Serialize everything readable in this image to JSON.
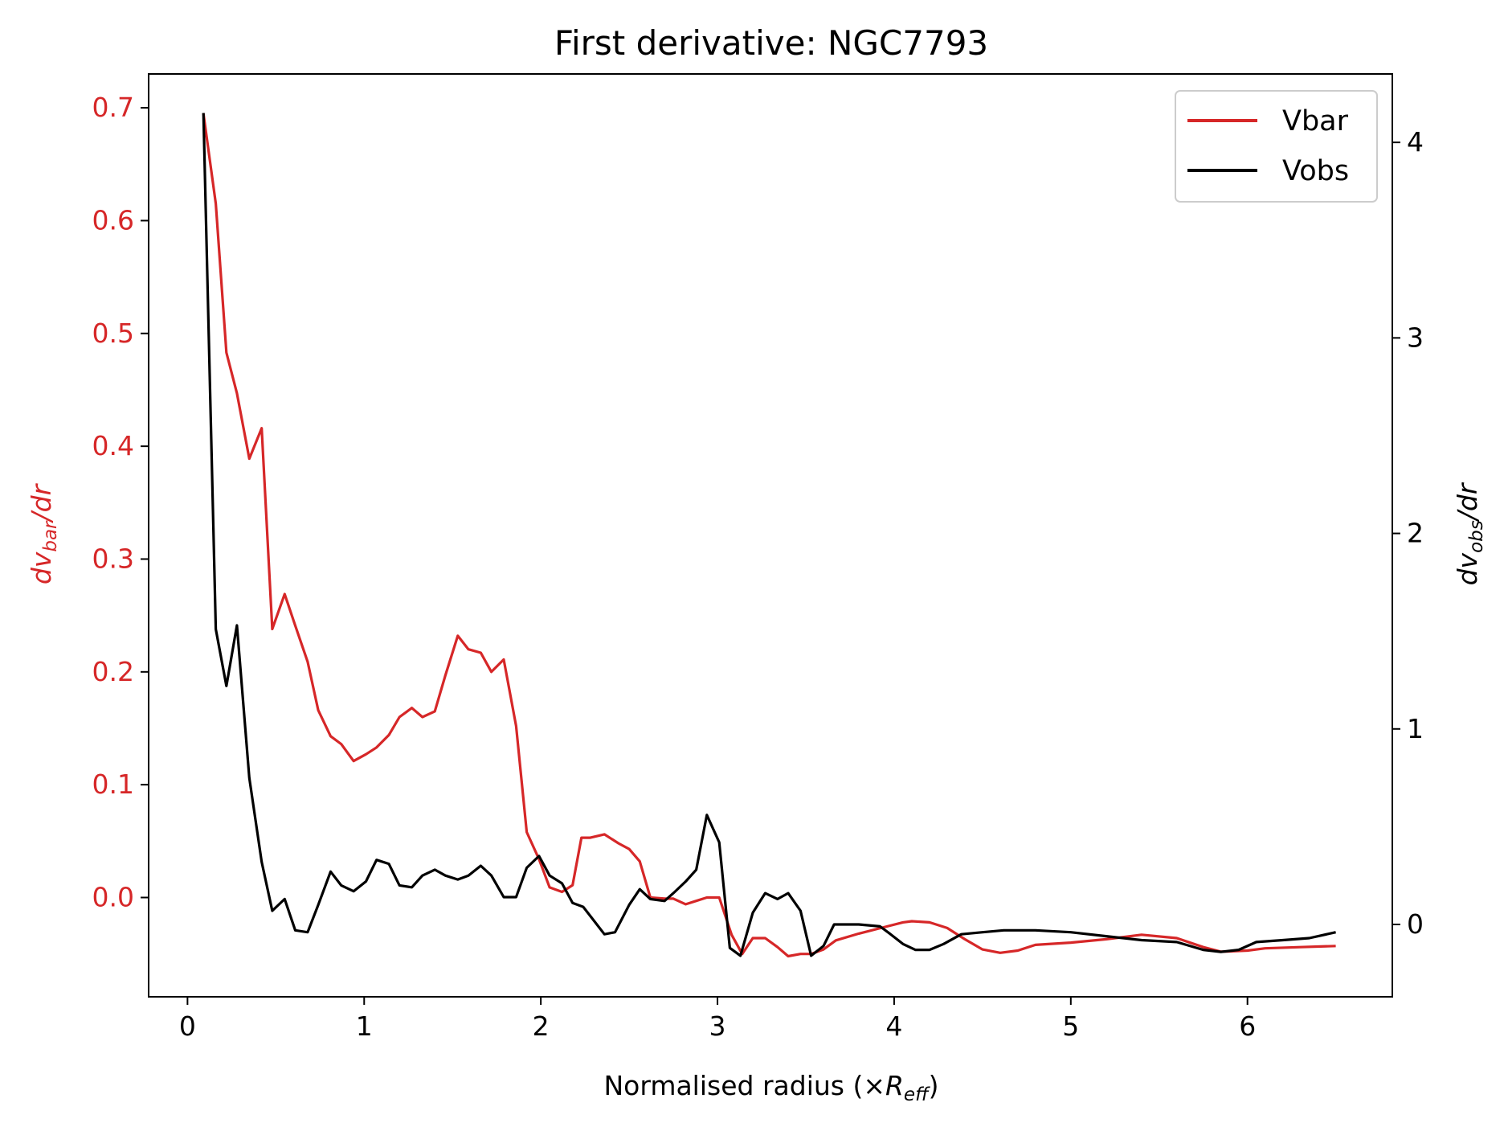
{
  "chart_data": {
    "type": "line",
    "title": "First derivative: NGC7793",
    "xlabel": {
      "main": "Normalised radius (×",
      "italic": "R",
      "sub": "eff",
      "close": ")"
    },
    "ylabel_left": {
      "italic": "dv",
      "sub": "bar",
      "tail": "/dr",
      "color": "#d62728"
    },
    "ylabel_right": {
      "italic": "dv",
      "sub": "obs",
      "tail": "/dr",
      "color": "#000000"
    },
    "xlim": [
      -0.22,
      6.82
    ],
    "ylim_left": [
      -0.088,
      0.73
    ],
    "ylim_right": [
      -0.37,
      4.35
    ],
    "x_ticks": [
      0,
      1,
      2,
      3,
      4,
      5,
      6
    ],
    "x_tick_labels": [
      "0",
      "1",
      "2",
      "3",
      "4",
      "5",
      "6"
    ],
    "y_left_ticks": [
      0.0,
      0.1,
      0.2,
      0.3,
      0.4,
      0.5,
      0.6,
      0.7
    ],
    "y_left_tick_labels": [
      "0.0",
      "0.1",
      "0.2",
      "0.3",
      "0.4",
      "0.5",
      "0.6",
      "0.7"
    ],
    "y_right_ticks": [
      0,
      1,
      2,
      3,
      4
    ],
    "y_right_tick_labels": [
      "0",
      "1",
      "2",
      "3",
      "4"
    ],
    "legend_position": "top-right",
    "series": [
      {
        "name": "Vbar",
        "axis": "left",
        "color": "#d62728",
        "points": [
          [
            0.09,
            0.695
          ],
          [
            0.16,
            0.615
          ],
          [
            0.22,
            0.483
          ],
          [
            0.28,
            0.447
          ],
          [
            0.35,
            0.389
          ],
          [
            0.42,
            0.416
          ],
          [
            0.48,
            0.238
          ],
          [
            0.55,
            0.269
          ],
          [
            0.61,
            0.241
          ],
          [
            0.68,
            0.209
          ],
          [
            0.74,
            0.166
          ],
          [
            0.81,
            0.143
          ],
          [
            0.87,
            0.136
          ],
          [
            0.94,
            0.121
          ],
          [
            1.01,
            0.127
          ],
          [
            1.07,
            0.133
          ],
          [
            1.14,
            0.144
          ],
          [
            1.2,
            0.16
          ],
          [
            1.27,
            0.168
          ],
          [
            1.33,
            0.16
          ],
          [
            1.4,
            0.165
          ],
          [
            1.46,
            0.197
          ],
          [
            1.53,
            0.232
          ],
          [
            1.59,
            0.22
          ],
          [
            1.66,
            0.217
          ],
          [
            1.72,
            0.2
          ],
          [
            1.79,
            0.211
          ],
          [
            1.86,
            0.152
          ],
          [
            1.92,
            0.058
          ],
          [
            1.99,
            0.034
          ],
          [
            2.05,
            0.009
          ],
          [
            2.12,
            0.005
          ],
          [
            2.18,
            0.011
          ],
          [
            2.23,
            0.053
          ],
          [
            2.28,
            0.053
          ],
          [
            2.36,
            0.056
          ],
          [
            2.44,
            0.048
          ],
          [
            2.5,
            0.043
          ],
          [
            2.56,
            0.032
          ],
          [
            2.62,
            0.0
          ],
          [
            2.7,
            -0.001
          ],
          [
            2.75,
            -0.001
          ],
          [
            2.82,
            -0.006
          ],
          [
            2.88,
            -0.003
          ],
          [
            2.94,
            0.0
          ],
          [
            3.01,
            0.0
          ],
          [
            3.08,
            -0.033
          ],
          [
            3.14,
            -0.05
          ],
          [
            3.2,
            -0.036
          ],
          [
            3.27,
            -0.036
          ],
          [
            3.34,
            -0.044
          ],
          [
            3.4,
            -0.052
          ],
          [
            3.47,
            -0.05
          ],
          [
            3.53,
            -0.05
          ],
          [
            3.6,
            -0.046
          ],
          [
            3.67,
            -0.038
          ],
          [
            3.8,
            -0.032
          ],
          [
            3.95,
            -0.026
          ],
          [
            4.05,
            -0.022
          ],
          [
            4.1,
            -0.021
          ],
          [
            4.2,
            -0.022
          ],
          [
            4.3,
            -0.027
          ],
          [
            4.4,
            -0.037
          ],
          [
            4.5,
            -0.046
          ],
          [
            4.6,
            -0.049
          ],
          [
            4.7,
            -0.047
          ],
          [
            4.8,
            -0.042
          ],
          [
            5.0,
            -0.04
          ],
          [
            5.2,
            -0.037
          ],
          [
            5.4,
            -0.033
          ],
          [
            5.6,
            -0.036
          ],
          [
            5.75,
            -0.044
          ],
          [
            5.85,
            -0.048
          ],
          [
            6.0,
            -0.047
          ],
          [
            6.1,
            -0.045
          ],
          [
            6.3,
            -0.044
          ],
          [
            6.5,
            -0.043
          ]
        ]
      },
      {
        "name": "Vobs",
        "axis": "right",
        "color": "#000000",
        "points": [
          [
            0.09,
            4.15
          ],
          [
            0.16,
            1.51
          ],
          [
            0.22,
            1.22
          ],
          [
            0.28,
            1.53
          ],
          [
            0.35,
            0.75
          ],
          [
            0.42,
            0.32
          ],
          [
            0.48,
            0.07
          ],
          [
            0.55,
            0.13
          ],
          [
            0.61,
            -0.03
          ],
          [
            0.68,
            -0.04
          ],
          [
            0.74,
            0.1
          ],
          [
            0.81,
            0.27
          ],
          [
            0.87,
            0.2
          ],
          [
            0.94,
            0.17
          ],
          [
            1.01,
            0.22
          ],
          [
            1.07,
            0.33
          ],
          [
            1.14,
            0.31
          ],
          [
            1.2,
            0.2
          ],
          [
            1.27,
            0.19
          ],
          [
            1.33,
            0.25
          ],
          [
            1.4,
            0.28
          ],
          [
            1.46,
            0.25
          ],
          [
            1.53,
            0.23
          ],
          [
            1.59,
            0.25
          ],
          [
            1.66,
            0.3
          ],
          [
            1.72,
            0.25
          ],
          [
            1.79,
            0.14
          ],
          [
            1.86,
            0.14
          ],
          [
            1.92,
            0.29
          ],
          [
            1.99,
            0.35
          ],
          [
            2.05,
            0.25
          ],
          [
            2.12,
            0.21
          ],
          [
            2.18,
            0.11
          ],
          [
            2.24,
            0.09
          ],
          [
            2.3,
            0.02
          ],
          [
            2.36,
            -0.05
          ],
          [
            2.42,
            -0.04
          ],
          [
            2.5,
            0.1
          ],
          [
            2.56,
            0.18
          ],
          [
            2.62,
            0.13
          ],
          [
            2.7,
            0.12
          ],
          [
            2.75,
            0.16
          ],
          [
            2.82,
            0.22
          ],
          [
            2.88,
            0.28
          ],
          [
            2.94,
            0.56
          ],
          [
            3.01,
            0.42
          ],
          [
            3.07,
            -0.12
          ],
          [
            3.13,
            -0.16
          ],
          [
            3.2,
            0.06
          ],
          [
            3.27,
            0.16
          ],
          [
            3.34,
            0.13
          ],
          [
            3.4,
            0.16
          ],
          [
            3.47,
            0.07
          ],
          [
            3.53,
            -0.16
          ],
          [
            3.6,
            -0.11
          ],
          [
            3.66,
            0.0
          ],
          [
            3.8,
            0.0
          ],
          [
            3.92,
            -0.01
          ],
          [
            3.98,
            -0.05
          ],
          [
            4.05,
            -0.1
          ],
          [
            4.12,
            -0.13
          ],
          [
            4.2,
            -0.13
          ],
          [
            4.28,
            -0.1
          ],
          [
            4.38,
            -0.05
          ],
          [
            4.5,
            -0.04
          ],
          [
            4.62,
            -0.03
          ],
          [
            4.8,
            -0.03
          ],
          [
            5.0,
            -0.04
          ],
          [
            5.2,
            -0.06
          ],
          [
            5.4,
            -0.08
          ],
          [
            5.6,
            -0.09
          ],
          [
            5.75,
            -0.13
          ],
          [
            5.85,
            -0.14
          ],
          [
            5.95,
            -0.13
          ],
          [
            6.05,
            -0.09
          ],
          [
            6.2,
            -0.08
          ],
          [
            6.35,
            -0.07
          ],
          [
            6.5,
            -0.04
          ]
        ]
      }
    ]
  }
}
